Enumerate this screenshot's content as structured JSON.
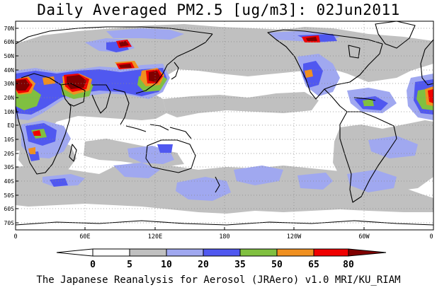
{
  "title": "Daily Averaged PM2.5 [ug/m3]: 02Jun2011",
  "credit": "The Japanese Reanalysis for Aerosol (JRAero) v1.0 MRI/KU_RIAM",
  "map": {
    "projection": "cylindrical equidistant",
    "lon_range": [
      0,
      360
    ],
    "lat_range": [
      -75,
      75
    ],
    "grid": "dotted",
    "lat_labels": [
      "70N",
      "60N",
      "50N",
      "40N",
      "30N",
      "20N",
      "10N",
      "EQ",
      "10S",
      "20S",
      "30S",
      "40S",
      "50S",
      "60S",
      "70S"
    ],
    "lon_labels": [
      "0",
      "60E",
      "120E",
      "180",
      "120W",
      "60W",
      "0"
    ]
  },
  "colorbar": {
    "levels": [
      "0",
      "5",
      "10",
      "20",
      "35",
      "50",
      "65",
      "80"
    ],
    "colors": [
      "#ffffff",
      "#c0c0c0",
      "#a0a8f0",
      "#5058f0",
      "#80c040",
      "#f09020",
      "#f00000",
      "#800000"
    ]
  }
}
